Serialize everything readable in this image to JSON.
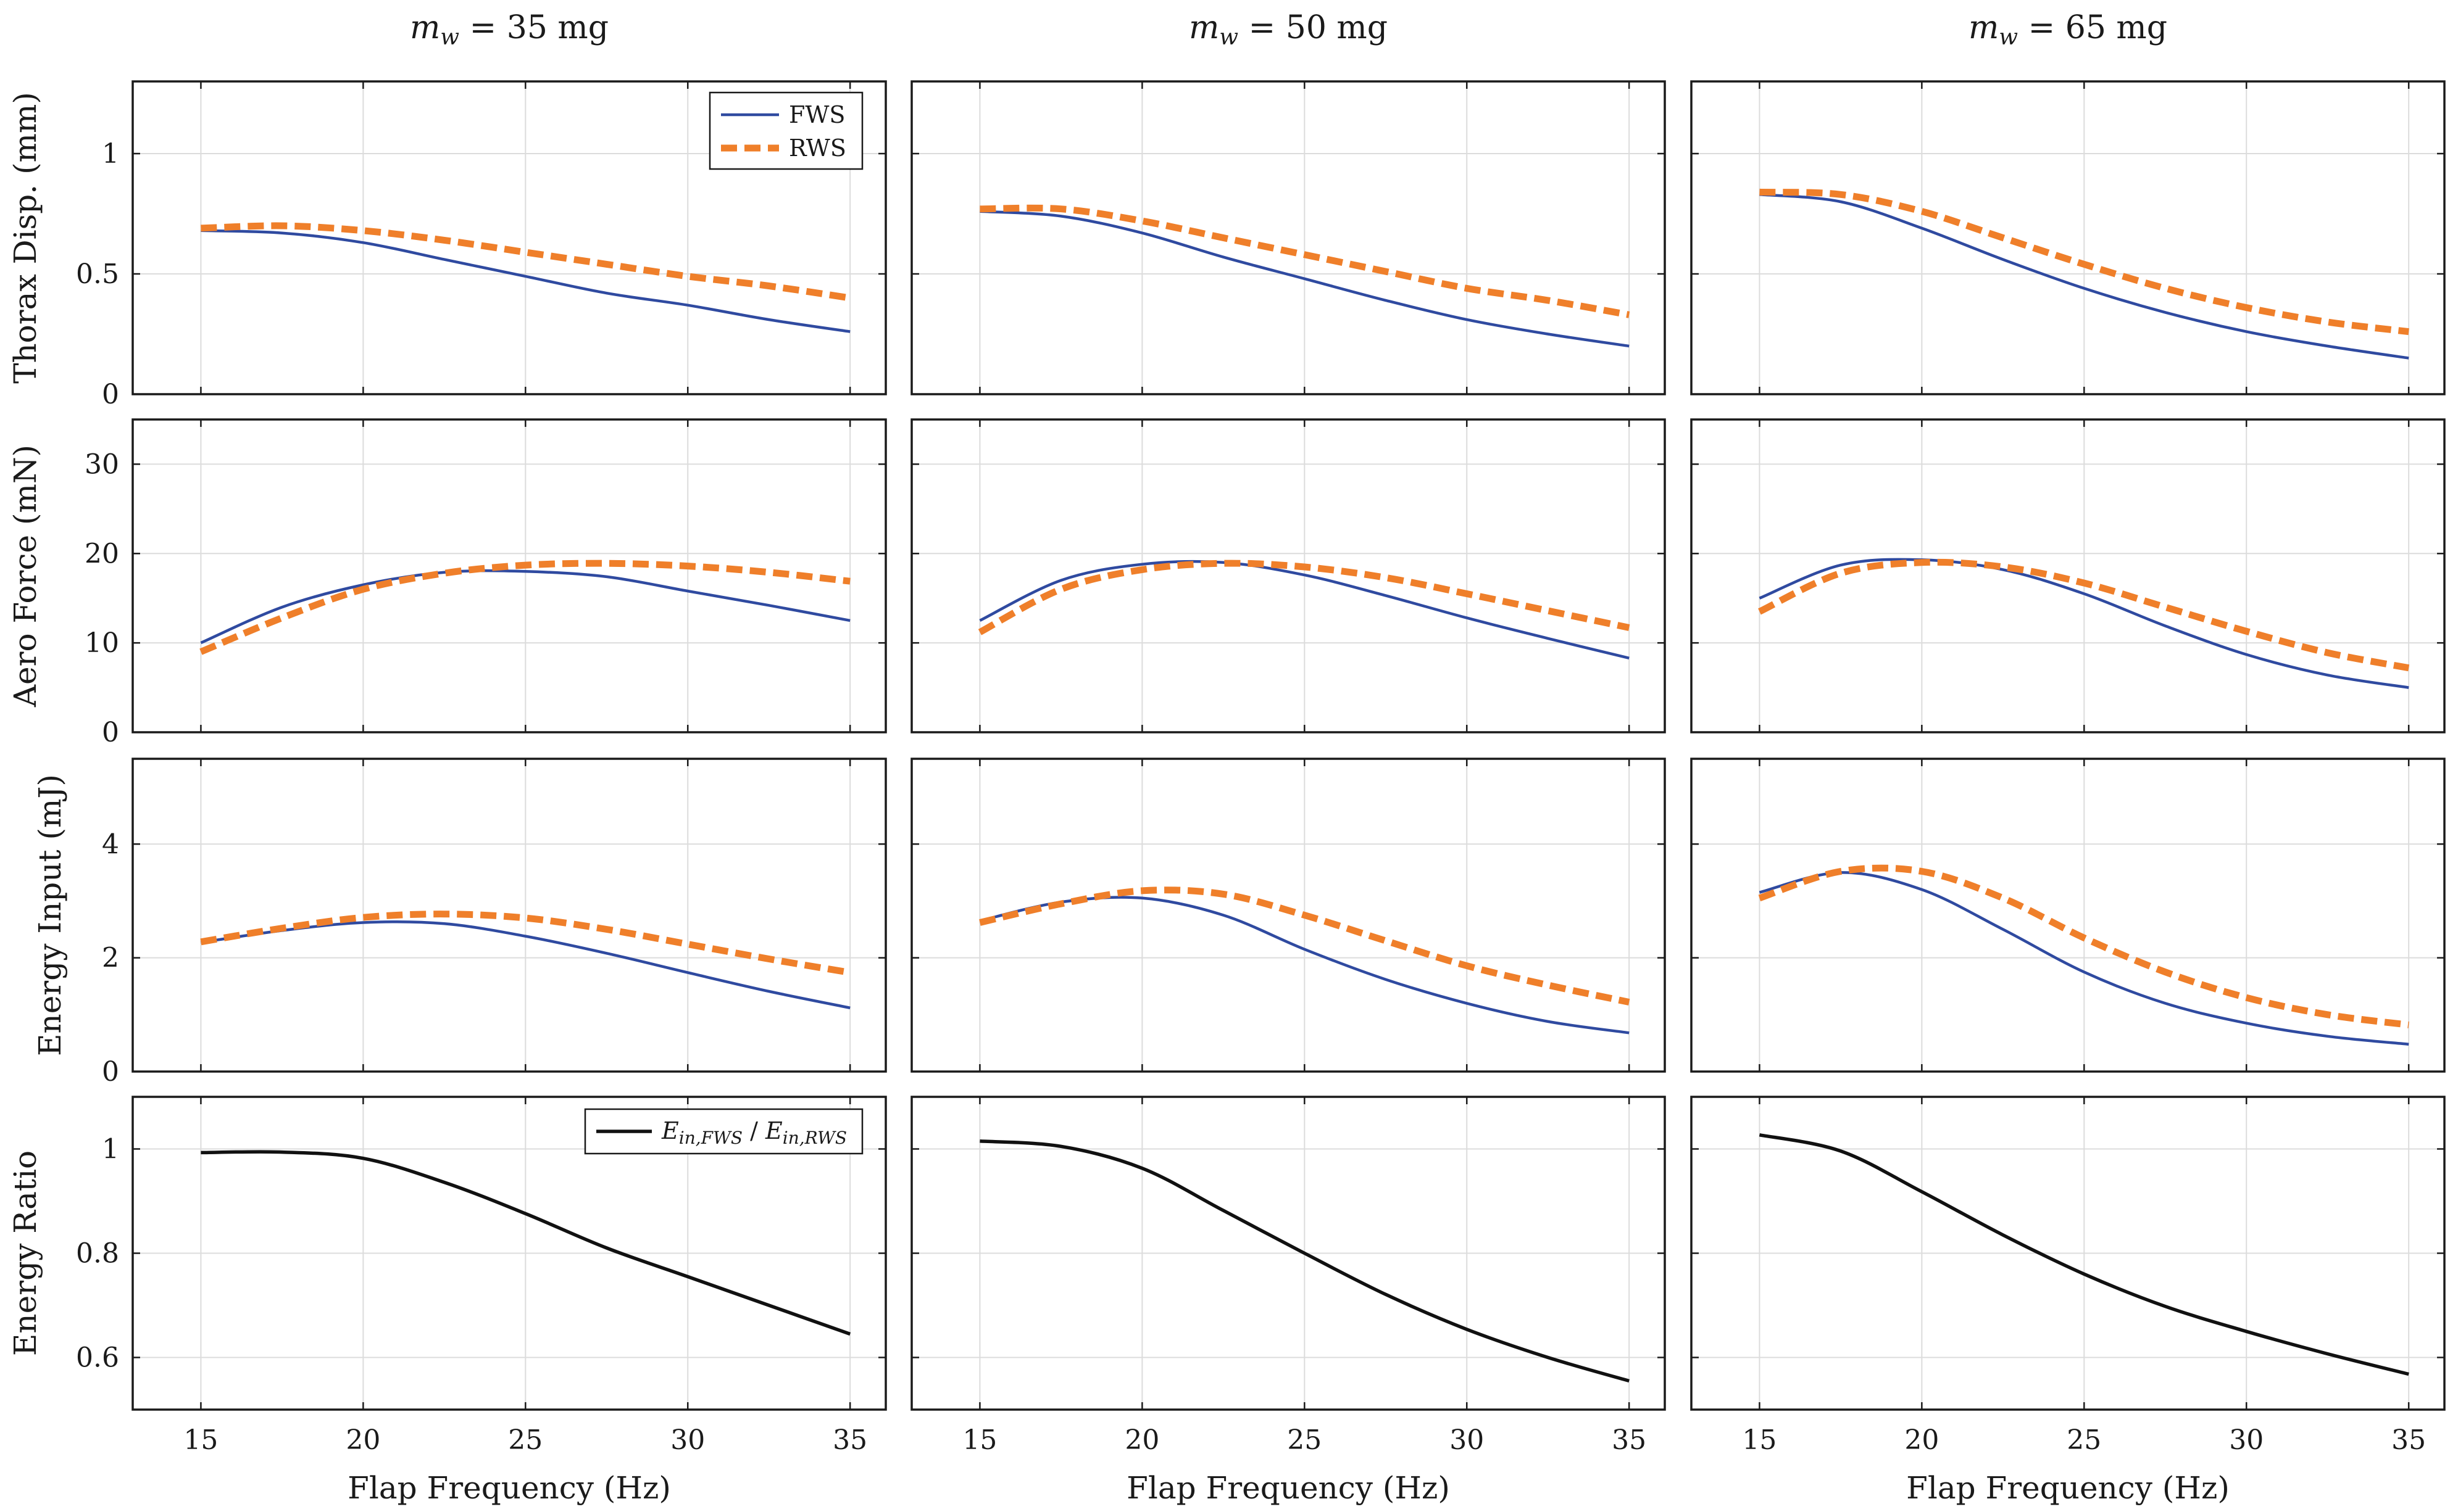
{
  "colors": {
    "fws": "#2f4aa0",
    "rws": "#ef7f2a",
    "ratio": "#111111"
  },
  "chart_data": {
    "type": "line",
    "layout": "4 rows x 3 columns",
    "column_titles": [
      {
        "var": "m",
        "sub": "w",
        "rest": " = 35 mg"
      },
      {
        "var": "m",
        "sub": "w",
        "rest": " = 50 mg"
      },
      {
        "var": "m",
        "sub": "w",
        "rest": " = 65 mg"
      }
    ],
    "xlabel": "Flap Frequency (Hz)",
    "xlim": [
      12.9,
      36.1
    ],
    "xticks": [
      15,
      20,
      25,
      30,
      35
    ],
    "x": [
      15,
      17.5,
      20,
      22.5,
      25,
      27.5,
      30,
      32.5,
      35
    ],
    "legend_fws": "FWS",
    "legend_rws": "RWS",
    "legend_ratio": {
      "v1": "E",
      "s1": "in,FWS",
      "slash": " / ",
      "v2": "E",
      "s2": "in,RWS"
    },
    "rows": [
      {
        "ylabel": "Thorax Disp. (mm)",
        "ylim": [
          0,
          1.3
        ],
        "yticks": [
          0,
          0.5,
          1
        ],
        "panels": [
          {
            "series": [
              {
                "name": "FWS",
                "values": [
                  0.68,
                  0.67,
                  0.63,
                  0.56,
                  0.49,
                  0.42,
                  0.37,
                  0.31,
                  0.26
                ]
              },
              {
                "name": "RWS",
                "values": [
                  0.69,
                  0.7,
                  0.68,
                  0.64,
                  0.59,
                  0.54,
                  0.49,
                  0.45,
                  0.4
                ]
              }
            ]
          },
          {
            "series": [
              {
                "name": "FWS",
                "values": [
                  0.76,
                  0.74,
                  0.67,
                  0.57,
                  0.48,
                  0.39,
                  0.31,
                  0.25,
                  0.2
                ]
              },
              {
                "name": "RWS",
                "values": [
                  0.77,
                  0.77,
                  0.72,
                  0.65,
                  0.58,
                  0.51,
                  0.44,
                  0.39,
                  0.33
                ]
              }
            ]
          },
          {
            "series": [
              {
                "name": "FWS",
                "values": [
                  0.83,
                  0.8,
                  0.69,
                  0.56,
                  0.44,
                  0.34,
                  0.26,
                  0.2,
                  0.15
                ]
              },
              {
                "name": "RWS",
                "values": [
                  0.84,
                  0.83,
                  0.76,
                  0.65,
                  0.54,
                  0.44,
                  0.36,
                  0.3,
                  0.26
                ]
              }
            ]
          }
        ]
      },
      {
        "ylabel": "Aero Force (mN)",
        "ylim": [
          0,
          35
        ],
        "yticks": [
          0,
          10,
          20,
          30
        ],
        "panels": [
          {
            "series": [
              {
                "name": "FWS",
                "values": [
                  10.0,
                  14.0,
                  16.5,
                  17.9,
                  18.0,
                  17.4,
                  15.8,
                  14.2,
                  12.5
                ]
              },
              {
                "name": "RWS",
                "values": [
                  9.0,
                  12.8,
                  16.0,
                  17.8,
                  18.7,
                  18.9,
                  18.6,
                  17.9,
                  16.9
                ]
              }
            ]
          },
          {
            "series": [
              {
                "name": "FWS",
                "values": [
                  12.5,
                  17.0,
                  18.8,
                  19.0,
                  17.6,
                  15.3,
                  12.8,
                  10.5,
                  8.3
                ]
              },
              {
                "name": "RWS",
                "values": [
                  11.2,
                  16.0,
                  18.2,
                  18.9,
                  18.5,
                  17.3,
                  15.5,
                  13.6,
                  11.7
                ]
              }
            ]
          },
          {
            "series": [
              {
                "name": "FWS",
                "values": [
                  15.0,
                  18.7,
                  19.3,
                  18.2,
                  15.5,
                  11.9,
                  8.7,
                  6.4,
                  5.0
                ]
              },
              {
                "name": "RWS",
                "values": [
                  13.5,
                  17.8,
                  19.0,
                  18.5,
                  16.7,
                  14.0,
                  11.3,
                  8.9,
                  7.2
                ]
              }
            ]
          }
        ]
      },
      {
        "ylabel": "Energy Input (mJ)",
        "ylim": [
          0,
          5.5
        ],
        "yticks": [
          0,
          2,
          4
        ],
        "panels": [
          {
            "series": [
              {
                "name": "FWS",
                "values": [
                  2.27,
                  2.48,
                  2.62,
                  2.6,
                  2.38,
                  2.08,
                  1.74,
                  1.41,
                  1.12
                ]
              },
              {
                "name": "RWS",
                "values": [
                  2.28,
                  2.52,
                  2.71,
                  2.77,
                  2.7,
                  2.5,
                  2.24,
                  1.98,
                  1.74
                ]
              }
            ]
          },
          {
            "series": [
              {
                "name": "FWS",
                "values": [
                  2.65,
                  2.98,
                  3.05,
                  2.75,
                  2.15,
                  1.62,
                  1.2,
                  0.88,
                  0.68
                ]
              },
              {
                "name": "RWS",
                "values": [
                  2.62,
                  2.95,
                  3.18,
                  3.12,
                  2.75,
                  2.3,
                  1.86,
                  1.52,
                  1.22
                ]
              }
            ]
          },
          {
            "series": [
              {
                "name": "FWS",
                "values": [
                  3.15,
                  3.5,
                  3.2,
                  2.5,
                  1.75,
                  1.2,
                  0.85,
                  0.62,
                  0.48
                ]
              },
              {
                "name": "RWS",
                "values": [
                  3.05,
                  3.52,
                  3.52,
                  3.05,
                  2.35,
                  1.75,
                  1.3,
                  1.0,
                  0.82
                ]
              }
            ]
          }
        ]
      },
      {
        "ylabel": "Energy Ratio",
        "ylim": [
          0.5,
          1.1
        ],
        "yticks": [
          0.6,
          0.8,
          1
        ],
        "panels": [
          {
            "series": [
              {
                "name": "ratio",
                "values": [
                  0.993,
                  0.994,
                  0.982,
                  0.936,
                  0.876,
                  0.81,
                  0.755,
                  0.7,
                  0.645
                ]
              }
            ]
          },
          {
            "series": [
              {
                "name": "ratio",
                "values": [
                  1.015,
                  1.005,
                  0.963,
                  0.882,
                  0.8,
                  0.721,
                  0.654,
                  0.6,
                  0.555
                ]
              }
            ]
          },
          {
            "series": [
              {
                "name": "ratio",
                "values": [
                  1.027,
                  0.996,
                  0.918,
                  0.835,
                  0.76,
                  0.698,
                  0.65,
                  0.607,
                  0.568
                ]
              }
            ]
          }
        ]
      }
    ]
  }
}
